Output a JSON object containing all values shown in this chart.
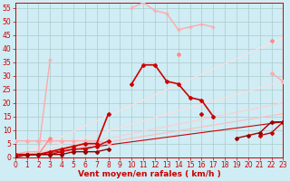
{
  "background_color": "#d0ecf4",
  "grid_color": "#aacccc",
  "xlabel": "Vent moyen/en rafales ( km/h )",
  "xlabel_color": "#cc0000",
  "xlabel_fontsize": 6.5,
  "tick_color": "#cc0000",
  "tick_fontsize": 5.5,
  "ylim": [
    0,
    57
  ],
  "xlim": [
    0,
    23
  ],
  "yticks": [
    0,
    5,
    10,
    15,
    20,
    25,
    30,
    35,
    40,
    45,
    50,
    55
  ],
  "xticks": [
    0,
    1,
    2,
    3,
    4,
    5,
    6,
    7,
    8,
    9,
    10,
    11,
    12,
    13,
    14,
    15,
    16,
    17,
    18,
    19,
    20,
    21,
    22,
    23
  ],
  "lines": [
    {
      "x": [
        0,
        1,
        2,
        3,
        4,
        5,
        6,
        7,
        8,
        9,
        10,
        11,
        12,
        13,
        14,
        15,
        16,
        17,
        18,
        19,
        20,
        21,
        22,
        23
      ],
      "y": [
        1,
        2,
        2,
        36,
        null,
        null,
        null,
        null,
        null,
        null,
        55,
        57,
        54,
        53,
        47,
        48,
        49,
        48,
        null,
        null,
        null,
        null,
        null,
        null
      ],
      "color": "#ffaaaa",
      "lw": 1.0,
      "marker": "+",
      "ms": 3.5
    },
    {
      "x": [
        0,
        1,
        2,
        3,
        4,
        5,
        6,
        7,
        8,
        9,
        10,
        11,
        12,
        13,
        14,
        15,
        16,
        17,
        18,
        19,
        20,
        21,
        22,
        23
      ],
      "y": [
        6,
        6,
        6,
        6,
        6,
        6,
        6,
        6,
        5,
        null,
        null,
        null,
        null,
        null,
        null,
        null,
        null,
        null,
        null,
        null,
        null,
        null,
        31,
        28
      ],
      "color": "#ffaaaa",
      "lw": 1.0,
      "marker": "D",
      "ms": 2
    },
    {
      "x": [
        0,
        1,
        2,
        3,
        4,
        5,
        6,
        7,
        8,
        9,
        10,
        11,
        12,
        13,
        14,
        15,
        16,
        17,
        18,
        19,
        20,
        21,
        22,
        23
      ],
      "y": [
        1,
        1,
        1,
        7,
        null,
        null,
        null,
        null,
        null,
        null,
        null,
        null,
        null,
        null,
        38,
        null,
        null,
        null,
        null,
        null,
        null,
        null,
        43,
        null
      ],
      "color": "#ff8888",
      "lw": 1.0,
      "marker": "D",
      "ms": 2
    },
    {
      "x": [
        0,
        1,
        2,
        3,
        4,
        5,
        6,
        7,
        8,
        9,
        10,
        11,
        12,
        13,
        14,
        15,
        16,
        17
      ],
      "y": [
        1,
        1,
        1,
        2,
        3,
        4,
        5,
        5,
        16,
        null,
        27,
        34,
        34,
        28,
        27,
        22,
        21,
        15
      ],
      "color": "#cc0000",
      "lw": 1.2,
      "marker": "D",
      "ms": 2
    },
    {
      "x": [
        0,
        1,
        2,
        3,
        4,
        5,
        6,
        7,
        8,
        9,
        10,
        11,
        12,
        13,
        14,
        15,
        16,
        17,
        18,
        19,
        20,
        21,
        22,
        23
      ],
      "y": [
        1,
        1,
        1,
        1,
        2,
        3,
        3,
        4,
        6,
        null,
        null,
        null,
        null,
        null,
        null,
        null,
        16,
        null,
        null,
        null,
        null,
        8,
        9,
        13
      ],
      "color": "#cc0000",
      "lw": 1.0,
      "marker": "D",
      "ms": 2
    },
    {
      "x": [
        0,
        1,
        2,
        3,
        4,
        5,
        6,
        7,
        8,
        9,
        10,
        11,
        12,
        13,
        14,
        15,
        16,
        17,
        18,
        19,
        20,
        21,
        22,
        23
      ],
      "y": [
        0,
        1,
        1,
        1,
        1,
        2,
        2,
        2,
        3,
        null,
        null,
        null,
        null,
        null,
        null,
        null,
        null,
        null,
        null,
        7,
        8,
        9,
        13,
        13
      ],
      "color": "#990000",
      "lw": 1.0,
      "marker": "D",
      "ms": 2
    },
    {
      "x": [
        0,
        23
      ],
      "y": [
        0,
        13
      ],
      "color": "#cc0000",
      "lw": 0.8,
      "marker": null,
      "ms": 0
    },
    {
      "x": [
        0,
        23
      ],
      "y": [
        0,
        16
      ],
      "color": "#ffbbbb",
      "lw": 0.8,
      "marker": null,
      "ms": 0
    },
    {
      "x": [
        0,
        23
      ],
      "y": [
        0,
        20
      ],
      "color": "#ffcccc",
      "lw": 0.8,
      "marker": null,
      "ms": 0
    },
    {
      "x": [
        0,
        23
      ],
      "y": [
        0,
        28
      ],
      "color": "#ffdddd",
      "lw": 0.8,
      "marker": null,
      "ms": 0
    },
    {
      "x": [
        0,
        23
      ],
      "y": [
        0,
        44
      ],
      "color": "#ffe0e0",
      "lw": 0.8,
      "marker": null,
      "ms": 0
    }
  ]
}
